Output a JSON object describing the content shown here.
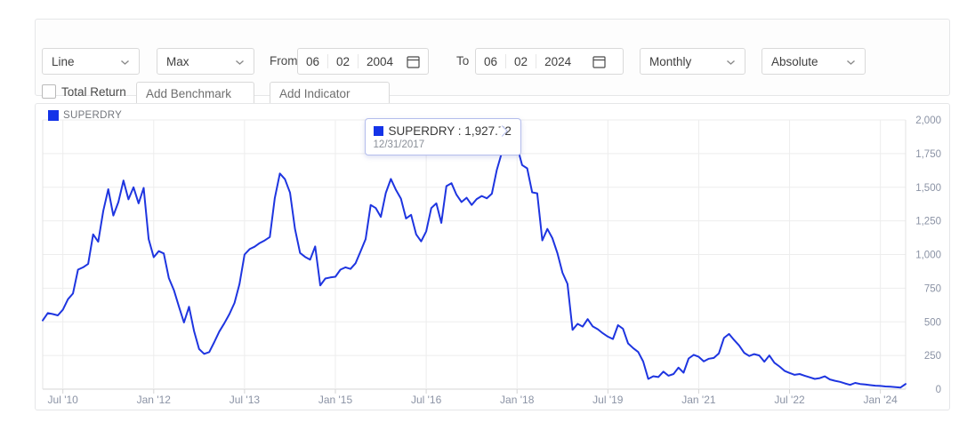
{
  "toolbar": {
    "chart_type": {
      "value": "Line"
    },
    "range": {
      "value": "Max"
    },
    "from": {
      "label": "From",
      "month": "06",
      "day": "02",
      "year": "2004"
    },
    "to": {
      "label": "To",
      "month": "06",
      "day": "02",
      "year": "2024"
    },
    "frequency": {
      "value": "Monthly"
    },
    "mode": {
      "value": "Absolute"
    },
    "total_return_label": "Total Return",
    "benchmark_placeholder": "Add Benchmark",
    "indicator_placeholder": "Add Indicator"
  },
  "legend": {
    "label": "SUPERDRY"
  },
  "tooltip": {
    "title": "SUPERDRY : 1,927.72",
    "date": "12/31/2017"
  },
  "colors": {
    "line": "#1e35e0",
    "swatch": "#1433e8",
    "grid": "#ededed",
    "axis": "#d5d5d5",
    "tick_text": "#8b93a5",
    "halo": "#5468e0"
  },
  "chart_data": {
    "type": "line",
    "series_name": "SUPERDRY",
    "start_month": "2010-03",
    "x_tick_labels": [
      "Jul '10",
      "Jan '12",
      "Jul '13",
      "Jan '15",
      "Jul '16",
      "Jan '18",
      "Jul '19",
      "Jan '21",
      "Jul '22",
      "Jan '24"
    ],
    "x_tick_month_index": [
      4,
      22,
      40,
      58,
      76,
      94,
      112,
      130,
      148,
      166
    ],
    "y_ticks": [
      0,
      250,
      500,
      750,
      1000,
      1250,
      1500,
      1750,
      2000
    ],
    "ylim": [
      0,
      2000
    ],
    "grid": true,
    "legend_position": "top-left",
    "highlight": {
      "date": "2017-12",
      "value": 1927.72,
      "display_value": "1,927.72",
      "display_date": "12/31/2017"
    },
    "points": [
      [
        "2010-03",
        510
      ],
      [
        "2010-04",
        565
      ],
      [
        "2010-05",
        558
      ],
      [
        "2010-06",
        548
      ],
      [
        "2010-07",
        590
      ],
      [
        "2010-08",
        668
      ],
      [
        "2010-09",
        710
      ],
      [
        "2010-10",
        888
      ],
      [
        "2010-11",
        905
      ],
      [
        "2010-12",
        930
      ],
      [
        "2011-01",
        1150
      ],
      [
        "2011-02",
        1095
      ],
      [
        "2011-03",
        1325
      ],
      [
        "2011-04",
        1485
      ],
      [
        "2011-05",
        1290
      ],
      [
        "2011-06",
        1390
      ],
      [
        "2011-07",
        1550
      ],
      [
        "2011-08",
        1410
      ],
      [
        "2011-09",
        1500
      ],
      [
        "2011-10",
        1380
      ],
      [
        "2011-11",
        1495
      ],
      [
        "2011-12",
        1115
      ],
      [
        "2012-01",
        980
      ],
      [
        "2012-02",
        1025
      ],
      [
        "2012-03",
        1008
      ],
      [
        "2012-04",
        825
      ],
      [
        "2012-05",
        735
      ],
      [
        "2012-06",
        612
      ],
      [
        "2012-07",
        495
      ],
      [
        "2012-08",
        612
      ],
      [
        "2012-09",
        430
      ],
      [
        "2012-10",
        298
      ],
      [
        "2012-11",
        262
      ],
      [
        "2012-12",
        275
      ],
      [
        "2013-01",
        350
      ],
      [
        "2013-02",
        428
      ],
      [
        "2013-03",
        490
      ],
      [
        "2013-04",
        558
      ],
      [
        "2013-05",
        640
      ],
      [
        "2013-06",
        780
      ],
      [
        "2013-07",
        1000
      ],
      [
        "2013-08",
        1040
      ],
      [
        "2013-09",
        1058
      ],
      [
        "2013-10",
        1085
      ],
      [
        "2013-11",
        1105
      ],
      [
        "2013-12",
        1130
      ],
      [
        "2014-01",
        1420
      ],
      [
        "2014-02",
        1602
      ],
      [
        "2014-03",
        1560
      ],
      [
        "2014-04",
        1460
      ],
      [
        "2014-05",
        1190
      ],
      [
        "2014-06",
        1012
      ],
      [
        "2014-07",
        982
      ],
      [
        "2014-08",
        962
      ],
      [
        "2014-09",
        1060
      ],
      [
        "2014-10",
        770
      ],
      [
        "2014-11",
        822
      ],
      [
        "2014-12",
        830
      ],
      [
        "2015-01",
        835
      ],
      [
        "2015-02",
        888
      ],
      [
        "2015-03",
        905
      ],
      [
        "2015-04",
        893
      ],
      [
        "2015-05",
        935
      ],
      [
        "2015-06",
        1025
      ],
      [
        "2015-07",
        1115
      ],
      [
        "2015-08",
        1368
      ],
      [
        "2015-09",
        1345
      ],
      [
        "2015-10",
        1280
      ],
      [
        "2015-11",
        1458
      ],
      [
        "2015-12",
        1562
      ],
      [
        "2016-01",
        1480
      ],
      [
        "2016-02",
        1415
      ],
      [
        "2016-03",
        1268
      ],
      [
        "2016-04",
        1295
      ],
      [
        "2016-05",
        1150
      ],
      [
        "2016-06",
        1098
      ],
      [
        "2016-07",
        1172
      ],
      [
        "2016-08",
        1345
      ],
      [
        "2016-09",
        1380
      ],
      [
        "2016-10",
        1235
      ],
      [
        "2016-11",
        1508
      ],
      [
        "2016-12",
        1530
      ],
      [
        "2017-01",
        1445
      ],
      [
        "2017-02",
        1390
      ],
      [
        "2017-03",
        1422
      ],
      [
        "2017-04",
        1368
      ],
      [
        "2017-05",
        1412
      ],
      [
        "2017-06",
        1435
      ],
      [
        "2017-07",
        1418
      ],
      [
        "2017-08",
        1452
      ],
      [
        "2017-09",
        1630
      ],
      [
        "2017-10",
        1760
      ],
      [
        "2017-11",
        1875
      ],
      [
        "2017-12",
        1927.72
      ],
      [
        "2018-01",
        1805
      ],
      [
        "2018-02",
        1665
      ],
      [
        "2018-03",
        1640
      ],
      [
        "2018-04",
        1462
      ],
      [
        "2018-05",
        1455
      ],
      [
        "2018-06",
        1105
      ],
      [
        "2018-07",
        1190
      ],
      [
        "2018-08",
        1122
      ],
      [
        "2018-09",
        1010
      ],
      [
        "2018-10",
        865
      ],
      [
        "2018-11",
        782
      ],
      [
        "2018-12",
        440
      ],
      [
        "2019-01",
        485
      ],
      [
        "2019-02",
        465
      ],
      [
        "2019-03",
        520
      ],
      [
        "2019-04",
        466
      ],
      [
        "2019-05",
        445
      ],
      [
        "2019-06",
        415
      ],
      [
        "2019-07",
        390
      ],
      [
        "2019-08",
        372
      ],
      [
        "2019-09",
        475
      ],
      [
        "2019-10",
        448
      ],
      [
        "2019-11",
        340
      ],
      [
        "2019-12",
        305
      ],
      [
        "2020-01",
        276
      ],
      [
        "2020-02",
        205
      ],
      [
        "2020-03",
        76
      ],
      [
        "2020-04",
        96
      ],
      [
        "2020-05",
        90
      ],
      [
        "2020-06",
        130
      ],
      [
        "2020-07",
        100
      ],
      [
        "2020-08",
        112
      ],
      [
        "2020-09",
        160
      ],
      [
        "2020-10",
        122
      ],
      [
        "2020-11",
        228
      ],
      [
        "2020-12",
        255
      ],
      [
        "2021-01",
        240
      ],
      [
        "2021-02",
        206
      ],
      [
        "2021-03",
        226
      ],
      [
        "2021-04",
        232
      ],
      [
        "2021-05",
        266
      ],
      [
        "2021-06",
        380
      ],
      [
        "2021-07",
        410
      ],
      [
        "2021-08",
        366
      ],
      [
        "2021-09",
        325
      ],
      [
        "2021-10",
        270
      ],
      [
        "2021-11",
        246
      ],
      [
        "2021-12",
        260
      ],
      [
        "2022-01",
        250
      ],
      [
        "2022-02",
        204
      ],
      [
        "2022-03",
        250
      ],
      [
        "2022-04",
        196
      ],
      [
        "2022-05",
        168
      ],
      [
        "2022-06",
        136
      ],
      [
        "2022-07",
        120
      ],
      [
        "2022-08",
        106
      ],
      [
        "2022-09",
        112
      ],
      [
        "2022-10",
        100
      ],
      [
        "2022-11",
        88
      ],
      [
        "2022-12",
        76
      ],
      [
        "2023-01",
        82
      ],
      [
        "2023-02",
        95
      ],
      [
        "2023-03",
        72
      ],
      [
        "2023-04",
        62
      ],
      [
        "2023-05",
        54
      ],
      [
        "2023-06",
        42
      ],
      [
        "2023-07",
        32
      ],
      [
        "2023-08",
        46
      ],
      [
        "2023-09",
        38
      ],
      [
        "2023-10",
        34
      ],
      [
        "2023-11",
        30
      ],
      [
        "2023-12",
        26
      ],
      [
        "2024-01",
        24
      ],
      [
        "2024-02",
        20
      ],
      [
        "2024-03",
        18
      ],
      [
        "2024-04",
        15
      ],
      [
        "2024-05",
        12
      ],
      [
        "2024-06",
        38
      ]
    ]
  }
}
